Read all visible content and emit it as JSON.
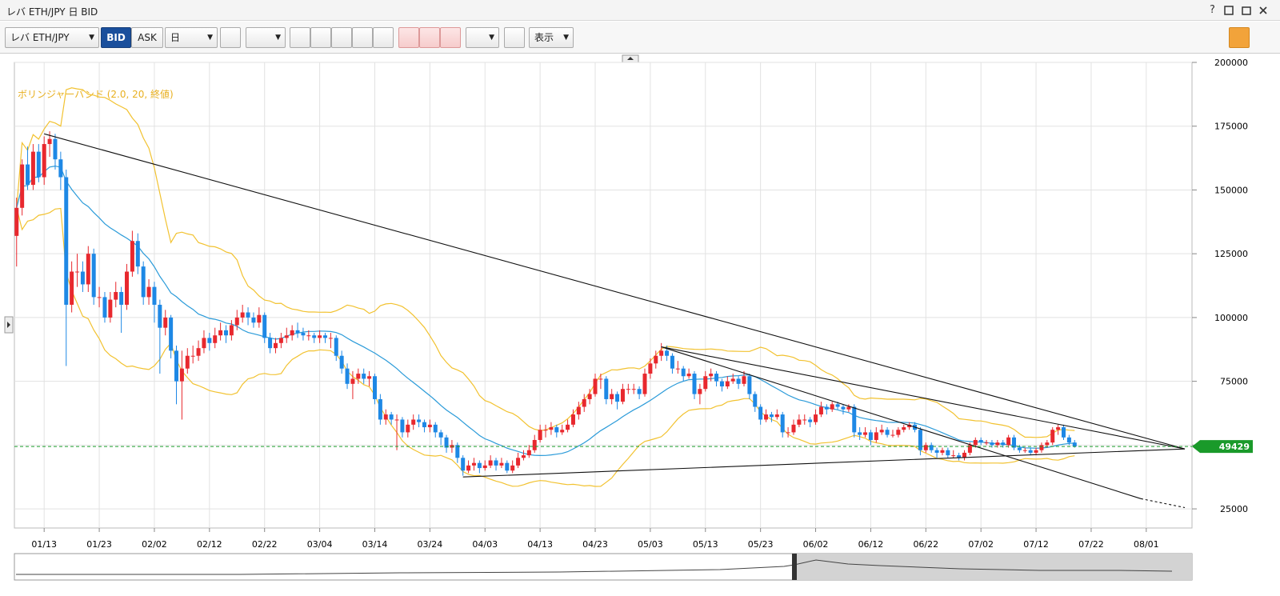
{
  "window": {
    "title": "レバ ETH/JPY 日 BID",
    "help": "?"
  },
  "toolbar": {
    "symbol": "レバ ETH/JPY",
    "bid": "BID",
    "ask": "ASK",
    "period": "日",
    "view": "表示"
  },
  "chart": {
    "type": "candlestick",
    "indicator_label": "ボリンジャーバンド (2.0, 20, 終値)",
    "bollinger": {
      "period": 20,
      "sigma": 2
    },
    "up_color": "#e8282e",
    "down_color": "#1e88e5",
    "band_color": "#f2c230",
    "ma_color": "#2b9bd9",
    "ylim": [
      17500,
      200000
    ],
    "yticks": [
      25000,
      50000,
      75000,
      100000,
      125000,
      150000,
      175000,
      200000
    ],
    "xlim": [
      -0.4,
      213.3
    ],
    "xticks": [
      {
        "value": 5,
        "label": "01/13"
      },
      {
        "value": 15,
        "label": "01/23"
      },
      {
        "value": 25,
        "label": "02/02"
      },
      {
        "value": 35,
        "label": "02/12"
      },
      {
        "value": 45,
        "label": "02/22"
      },
      {
        "value": 55,
        "label": "03/04"
      },
      {
        "value": 65,
        "label": "03/14"
      },
      {
        "value": 75,
        "label": "03/24"
      },
      {
        "value": 85,
        "label": "04/03"
      },
      {
        "value": 95,
        "label": "04/13"
      },
      {
        "value": 105,
        "label": "04/23"
      },
      {
        "value": 115,
        "label": "05/03"
      },
      {
        "value": 125,
        "label": "05/13"
      },
      {
        "value": 135,
        "label": "05/23"
      },
      {
        "value": 145,
        "label": "06/02"
      },
      {
        "value": 155,
        "label": "06/12"
      },
      {
        "value": 165,
        "label": "06/22"
      },
      {
        "value": 175,
        "label": "07/02"
      },
      {
        "value": 185,
        "label": "07/12"
      },
      {
        "value": 195,
        "label": "07/22"
      },
      {
        "value": 205,
        "label": "08/01"
      }
    ],
    "current_price": 49429,
    "current_color": "#1a9a2a",
    "trendlines": [
      {
        "from": [
          5,
          172000
        ],
        "to": [
          212,
          48500
        ],
        "dashed": false
      },
      {
        "from": [
          117,
          88500
        ],
        "to": [
          212,
          48500
        ],
        "dashed": false
      },
      {
        "from": [
          117,
          88500
        ],
        "to": [
          204,
          29000
        ],
        "dashed": false
      },
      {
        "from": [
          204,
          29000
        ],
        "to": [
          212,
          25500
        ],
        "dashed": true
      },
      {
        "from": [
          81,
          37500
        ],
        "to": [
          212,
          48500
        ],
        "dashed": false
      }
    ],
    "candles": [
      [
        132000,
        147000,
        120000,
        143000
      ],
      [
        143000,
        162000,
        140000,
        160000
      ],
      [
        160000,
        167000,
        150000,
        152000
      ],
      [
        152000,
        168000,
        150000,
        165000
      ],
      [
        165000,
        168000,
        153000,
        155000
      ],
      [
        155000,
        171000,
        152000,
        168000
      ],
      [
        168000,
        173000,
        163000,
        170000
      ],
      [
        170000,
        172000,
        158000,
        162000
      ],
      [
        162000,
        165000,
        150000,
        155000
      ],
      [
        155000,
        158000,
        81000,
        105000
      ],
      [
        105000,
        122000,
        102000,
        118000
      ],
      [
        118000,
        125000,
        112000,
        118000
      ],
      [
        118000,
        122000,
        110000,
        113000
      ],
      [
        113000,
        128000,
        110000,
        125000
      ],
      [
        125000,
        127000,
        105000,
        108000
      ],
      [
        108000,
        112000,
        104000,
        108000
      ],
      [
        108000,
        110000,
        98000,
        100000
      ],
      [
        100000,
        110000,
        98000,
        107000
      ],
      [
        107000,
        114000,
        104000,
        110000
      ],
      [
        110000,
        112000,
        94000,
        105000
      ],
      [
        105000,
        121000,
        103000,
        118000
      ],
      [
        118000,
        134000,
        116000,
        130000
      ],
      [
        130000,
        133000,
        117000,
        120000
      ],
      [
        120000,
        122000,
        105000,
        108000
      ],
      [
        108000,
        115000,
        105000,
        112000
      ],
      [
        112000,
        114000,
        98000,
        105000
      ],
      [
        105000,
        107000,
        78000,
        96000
      ],
      [
        96000,
        103000,
        93000,
        100000
      ],
      [
        100000,
        101000,
        84000,
        87000
      ],
      [
        87000,
        89000,
        66000,
        75000
      ],
      [
        75000,
        87000,
        60000,
        80000
      ],
      [
        80000,
        88000,
        78000,
        85000
      ],
      [
        85000,
        89000,
        82000,
        85000
      ],
      [
        85000,
        91000,
        83000,
        88000
      ],
      [
        88000,
        95000,
        86000,
        92000
      ],
      [
        92000,
        94000,
        87000,
        90000
      ],
      [
        90000,
        96000,
        88000,
        93000
      ],
      [
        93000,
        98000,
        91000,
        95000
      ],
      [
        95000,
        97000,
        90000,
        93000
      ],
      [
        93000,
        99000,
        91000,
        97000
      ],
      [
        97000,
        103000,
        95000,
        100000
      ],
      [
        100000,
        105000,
        98000,
        102000
      ],
      [
        102000,
        104000,
        97000,
        100000
      ],
      [
        100000,
        102000,
        96000,
        98000
      ],
      [
        98000,
        104000,
        96000,
        101000
      ],
      [
        101000,
        102000,
        90000,
        92000
      ],
      [
        92000,
        94000,
        86000,
        88000
      ],
      [
        88000,
        92000,
        86000,
        90000
      ],
      [
        90000,
        94000,
        88000,
        92000
      ],
      [
        92000,
        96000,
        90000,
        93000
      ],
      [
        93000,
        97000,
        91000,
        95000
      ],
      [
        95000,
        98000,
        92000,
        94000
      ],
      [
        94000,
        96000,
        91000,
        93000
      ],
      [
        93000,
        95000,
        91000,
        93000
      ],
      [
        93000,
        94000,
        90000,
        92000
      ],
      [
        92000,
        95000,
        90000,
        93000
      ],
      [
        93000,
        94000,
        90000,
        92000
      ],
      [
        92000,
        94000,
        88000,
        92000
      ],
      [
        92000,
        93000,
        83000,
        85000
      ],
      [
        85000,
        87000,
        78000,
        80000
      ],
      [
        80000,
        82000,
        72000,
        74000
      ],
      [
        74000,
        79000,
        68000,
        76000
      ],
      [
        76000,
        80000,
        74000,
        78000
      ],
      [
        78000,
        80000,
        74000,
        76000
      ],
      [
        76000,
        79000,
        73000,
        77000
      ],
      [
        77000,
        78000,
        66000,
        68000
      ],
      [
        68000,
        70000,
        58000,
        60000
      ],
      [
        60000,
        64000,
        58000,
        62000
      ],
      [
        62000,
        63000,
        58000,
        60000
      ],
      [
        60000,
        62000,
        48000,
        60000
      ],
      [
        60000,
        61000,
        53000,
        55000
      ],
      [
        55000,
        60000,
        53000,
        58000
      ],
      [
        58000,
        62000,
        56000,
        60000
      ],
      [
        60000,
        62000,
        57000,
        59000
      ],
      [
        59000,
        60000,
        55000,
        57000
      ],
      [
        57000,
        60000,
        55000,
        58000
      ],
      [
        58000,
        59000,
        53000,
        55000
      ],
      [
        55000,
        56000,
        50000,
        53000
      ],
      [
        53000,
        54000,
        47000,
        49000
      ],
      [
        49000,
        52000,
        47000,
        50000
      ],
      [
        50000,
        51000,
        43000,
        45000
      ],
      [
        45000,
        46000,
        38000,
        40000
      ],
      [
        40000,
        44000,
        39000,
        42000
      ],
      [
        42000,
        45000,
        40000,
        43000
      ],
      [
        43000,
        44000,
        39000,
        41000
      ],
      [
        41000,
        44000,
        40000,
        42000
      ],
      [
        42000,
        46000,
        41000,
        44000
      ],
      [
        44000,
        45000,
        40000,
        42000
      ],
      [
        42000,
        45000,
        41000,
        43000
      ],
      [
        43000,
        44000,
        39000,
        40000
      ],
      [
        40000,
        44000,
        39000,
        42000
      ],
      [
        42000,
        47000,
        41000,
        45000
      ],
      [
        45000,
        48000,
        44000,
        46000
      ],
      [
        46000,
        50000,
        45000,
        48000
      ],
      [
        48000,
        54000,
        47000,
        52000
      ],
      [
        52000,
        58000,
        51000,
        56000
      ],
      [
        56000,
        58000,
        53000,
        56000
      ],
      [
        56000,
        59000,
        54000,
        57000
      ],
      [
        57000,
        58000,
        53000,
        55000
      ],
      [
        55000,
        58000,
        54000,
        56000
      ],
      [
        56000,
        60000,
        55000,
        58000
      ],
      [
        58000,
        64000,
        57000,
        62000
      ],
      [
        62000,
        67000,
        60000,
        65000
      ],
      [
        65000,
        70000,
        63000,
        68000
      ],
      [
        68000,
        72000,
        66000,
        70000
      ],
      [
        70000,
        78000,
        69000,
        76000
      ],
      [
        76000,
        78000,
        72000,
        76000
      ],
      [
        76000,
        77000,
        66000,
        68000
      ],
      [
        68000,
        72000,
        66000,
        70000
      ],
      [
        70000,
        71000,
        64000,
        67000
      ],
      [
        67000,
        74000,
        66000,
        72000
      ],
      [
        72000,
        74000,
        70000,
        72000
      ],
      [
        72000,
        74000,
        70000,
        72000
      ],
      [
        72000,
        73000,
        68000,
        70000
      ],
      [
        70000,
        80000,
        69000,
        78000
      ],
      [
        78000,
        84000,
        76000,
        82000
      ],
      [
        82000,
        87000,
        80000,
        85000
      ],
      [
        85000,
        90000,
        83000,
        87000
      ],
      [
        87000,
        89000,
        83000,
        85000
      ],
      [
        85000,
        86000,
        78000,
        80000
      ],
      [
        80000,
        83000,
        78000,
        80000
      ],
      [
        80000,
        81000,
        75000,
        77000
      ],
      [
        77000,
        80000,
        76000,
        78000
      ],
      [
        78000,
        79000,
        68000,
        70000
      ],
      [
        70000,
        74000,
        66000,
        72000
      ],
      [
        72000,
        79000,
        71000,
        77000
      ],
      [
        77000,
        80000,
        75000,
        78000
      ],
      [
        78000,
        79000,
        73000,
        75000
      ],
      [
        75000,
        76000,
        71000,
        73000
      ],
      [
        73000,
        77000,
        72000,
        75000
      ],
      [
        75000,
        78000,
        74000,
        76000
      ],
      [
        76000,
        77000,
        72000,
        74000
      ],
      [
        74000,
        79000,
        73000,
        77000
      ],
      [
        77000,
        78000,
        68000,
        70000
      ],
      [
        70000,
        71000,
        63000,
        65000
      ],
      [
        65000,
        66000,
        58000,
        60000
      ],
      [
        60000,
        64000,
        59000,
        62000
      ],
      [
        62000,
        63000,
        59000,
        61000
      ],
      [
        61000,
        64000,
        60000,
        62000
      ],
      [
        62000,
        63000,
        53000,
        55000
      ],
      [
        55000,
        57000,
        53000,
        55000
      ],
      [
        55000,
        60000,
        54000,
        58000
      ],
      [
        58000,
        62000,
        57000,
        60000
      ],
      [
        60000,
        62000,
        58000,
        60000
      ],
      [
        60000,
        61000,
        57000,
        59000
      ],
      [
        59000,
        64000,
        58000,
        62000
      ],
      [
        62000,
        67000,
        61000,
        65000
      ],
      [
        65000,
        66000,
        62000,
        64000
      ],
      [
        64000,
        67000,
        63000,
        66000
      ],
      [
        66000,
        67000,
        64000,
        65000
      ],
      [
        65000,
        66000,
        62000,
        64000
      ],
      [
        64000,
        66000,
        63000,
        65000
      ],
      [
        65000,
        66000,
        53000,
        55000
      ],
      [
        55000,
        57000,
        52000,
        54000
      ],
      [
        54000,
        57000,
        53000,
        55000
      ],
      [
        55000,
        56000,
        50000,
        52000
      ],
      [
        52000,
        57000,
        51000,
        55000
      ],
      [
        55000,
        58000,
        54000,
        56000
      ],
      [
        56000,
        57000,
        53000,
        54000
      ],
      [
        54000,
        56000,
        53000,
        54000
      ],
      [
        54000,
        57000,
        53000,
        56000
      ],
      [
        56000,
        58000,
        55000,
        57000
      ],
      [
        57000,
        59000,
        56000,
        58000
      ],
      [
        58000,
        59000,
        55000,
        56000
      ],
      [
        56000,
        57000,
        46000,
        48000
      ],
      [
        48000,
        51000,
        47000,
        50000
      ],
      [
        50000,
        51000,
        47000,
        48000
      ],
      [
        48000,
        49000,
        45000,
        47000
      ],
      [
        47000,
        49000,
        46000,
        48000
      ],
      [
        48000,
        49000,
        45000,
        46000
      ],
      [
        46000,
        48000,
        45000,
        46000
      ],
      [
        46000,
        47000,
        44000,
        45000
      ],
      [
        45000,
        48000,
        44000,
        47000
      ],
      [
        47000,
        51000,
        46000,
        50000
      ],
      [
        50000,
        53000,
        49000,
        52000
      ],
      [
        52000,
        53000,
        50000,
        51000
      ],
      [
        51000,
        52000,
        50000,
        51000
      ],
      [
        51000,
        52000,
        49000,
        50000
      ],
      [
        50000,
        52000,
        49000,
        51000
      ],
      [
        51000,
        52000,
        49000,
        50000
      ],
      [
        50000,
        54000,
        49000,
        53000
      ],
      [
        53000,
        54000,
        48000,
        49000
      ],
      [
        49000,
        50000,
        47000,
        48000
      ],
      [
        48000,
        49000,
        47000,
        48000
      ],
      [
        48000,
        49000,
        46000,
        47000
      ],
      [
        47000,
        49000,
        46000,
        48000
      ],
      [
        48000,
        51000,
        47000,
        50000
      ],
      [
        50000,
        52000,
        49000,
        51000
      ],
      [
        51000,
        57000,
        50000,
        56000
      ],
      [
        56000,
        58000,
        54000,
        57000
      ],
      [
        57000,
        58000,
        52000,
        53000
      ],
      [
        53000,
        54000,
        50000,
        51000
      ],
      [
        51000,
        52000,
        49000,
        49429
      ]
    ]
  }
}
